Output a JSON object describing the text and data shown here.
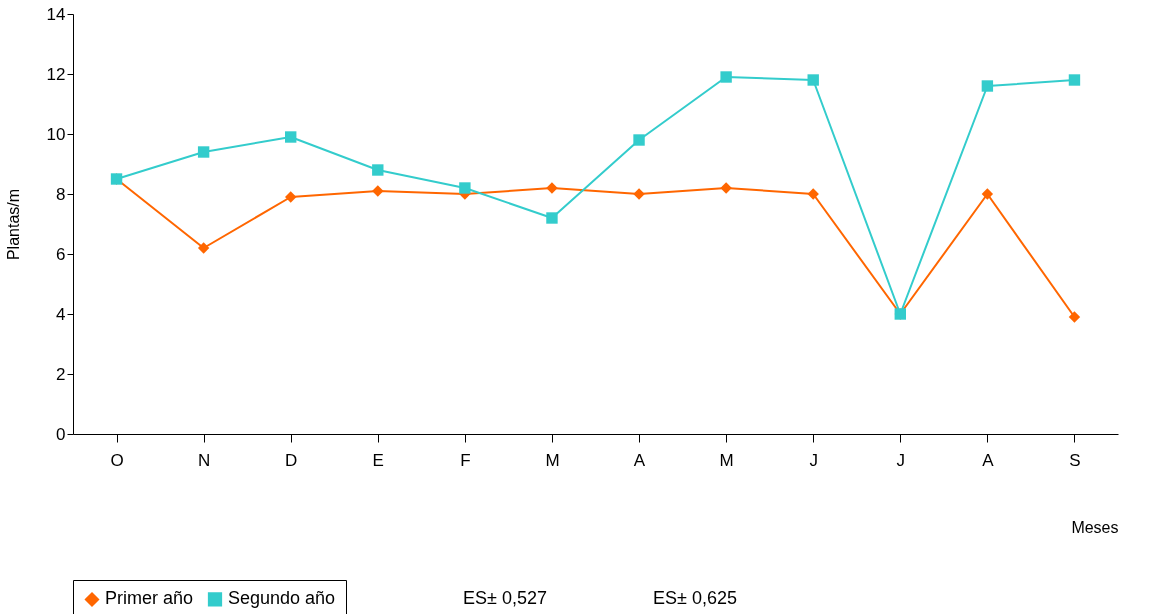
{
  "chart_data": {
    "type": "line",
    "xlabel": "Meses",
    "ylabel": "Plantas/m",
    "categories": [
      "O",
      "N",
      "D",
      "E",
      "F",
      "M",
      "A",
      "M",
      "J",
      "J",
      "A",
      "S"
    ],
    "series": [
      {
        "name": "Primer año",
        "color": "#ff6600",
        "marker": "diamond",
        "values": [
          8.5,
          6.2,
          7.9,
          8.1,
          8.0,
          8.2,
          8.0,
          8.2,
          8.0,
          4.0,
          8.0,
          3.9
        ]
      },
      {
        "name": "Segundo año",
        "color": "#33cccc",
        "marker": "square",
        "values": [
          8.5,
          9.4,
          9.9,
          8.8,
          8.2,
          7.2,
          9.8,
          11.9,
          11.8,
          4.0,
          11.6,
          11.8
        ]
      }
    ],
    "ylim": [
      0,
      14
    ],
    "yticks": [
      0,
      2,
      4,
      6,
      8,
      10,
      12,
      14
    ],
    "grid": false,
    "legend": "bottom",
    "annotations": [
      "ES± 0,527",
      "ES± 0,625"
    ]
  }
}
